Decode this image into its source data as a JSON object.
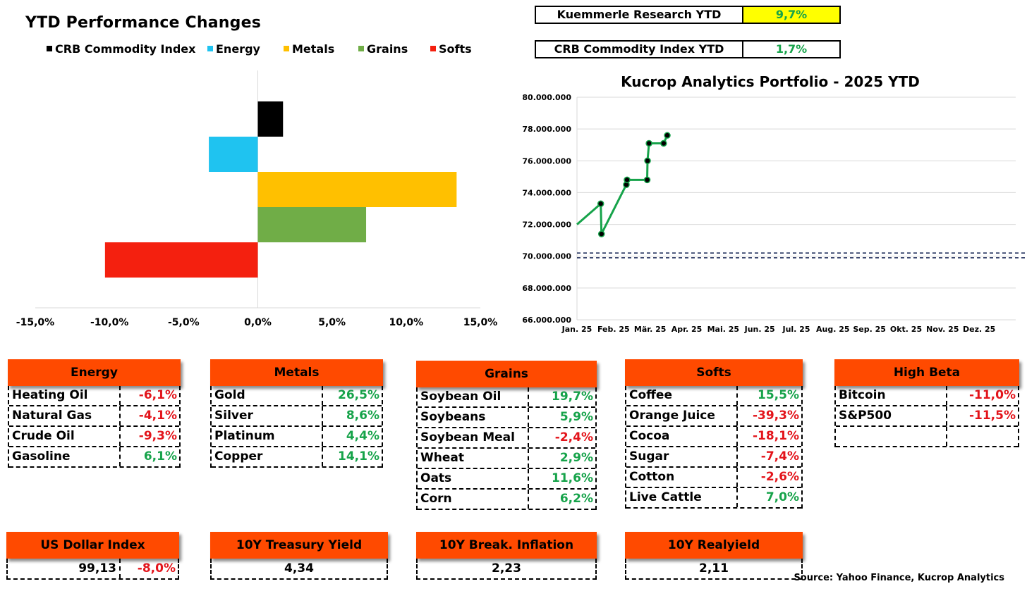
{
  "left_chart": {
    "title": "YTD Performance Changes",
    "legend": [
      {
        "label": "CRB Commodity Index",
        "color": "#000000"
      },
      {
        "label": "Energy",
        "color": "#1fc3f0"
      },
      {
        "label": "Metals",
        "color": "#ffc000"
      },
      {
        "label": "Grains",
        "color": "#70ad47"
      },
      {
        "label": "Softs",
        "color": "#f4200f"
      }
    ]
  },
  "kpis": [
    {
      "label": "Kuemmerle Research YTD",
      "value": "9,7%",
      "highlight": "#ffff00"
    },
    {
      "label": "CRB Commodity Index YTD",
      "value": "1,7%",
      "highlight": "#ffffff"
    }
  ],
  "right_chart": {
    "title": "Kucrop Analytics Portfolio - 2025 YTD"
  },
  "chart_data": [
    {
      "type": "bar",
      "orientation": "horizontal",
      "title": "YTD Performance Changes",
      "categories": [
        "CRB Commodity Index",
        "Energy",
        "Metals",
        "Grains",
        "Softs"
      ],
      "values": [
        1.7,
        -3.3,
        13.4,
        7.3,
        -10.3
      ],
      "colors": [
        "#000000",
        "#1fc3f0",
        "#ffc000",
        "#70ad47",
        "#f4200f"
      ],
      "xlim": [
        -15,
        15
      ],
      "xticks": [
        "-15,0%",
        "-10,0%",
        "-5,0%",
        "0,0%",
        "5,0%",
        "10,0%",
        "15,0%"
      ],
      "legend": "top"
    },
    {
      "type": "line",
      "title": "Kucrop Analytics Portfolio - 2025 YTD",
      "ylim": [
        66000000,
        80000000
      ],
      "yticks": [
        "66.000.000",
        "68.000.000",
        "70.000.000",
        "72.000.000",
        "74.000.000",
        "76.000.000",
        "78.000.000",
        "80.000.000"
      ],
      "xticks": [
        "Jan. 25",
        "Feb. 25",
        "Mär. 25",
        "Apr. 25",
        "Mai. 25",
        "Jun. 25",
        "Jul. 25",
        "Aug. 25",
        "Sep. 25",
        "Okt. 25",
        "Nov. 25",
        "Dez. 25"
      ],
      "grid": true,
      "series": [
        {
          "color": "#16a34a",
          "points": [
            {
              "month": 0.0,
              "value": 72000000,
              "marker": false
            },
            {
              "month": 0.65,
              "value": 73300000,
              "marker": true
            },
            {
              "month": 0.67,
              "value": 71400000,
              "marker": true
            },
            {
              "month": 1.35,
              "value": 74500000,
              "marker": true
            },
            {
              "month": 1.37,
              "value": 74800000,
              "marker": true
            },
            {
              "month": 1.92,
              "value": 74800000,
              "marker": true
            },
            {
              "month": 1.93,
              "value": 76000000,
              "marker": true
            },
            {
              "month": 1.97,
              "value": 77100000,
              "marker": true
            },
            {
              "month": 2.37,
              "value": 77100000,
              "marker": true
            },
            {
              "month": 2.47,
              "value": 77600000,
              "marker": true
            }
          ]
        }
      ],
      "reference_lines": [
        70200000,
        69900000
      ]
    }
  ],
  "tables": {
    "energy": {
      "title": "Energy",
      "rows": [
        {
          "name": "Heating Oil",
          "value": "-6,1%",
          "sign": "neg"
        },
        {
          "name": "Natural Gas",
          "value": "-4,1%",
          "sign": "neg"
        },
        {
          "name": "Crude Oil",
          "value": "-9,3%",
          "sign": "neg"
        },
        {
          "name": "Gasoline",
          "value": "6,1%",
          "sign": "pos"
        }
      ]
    },
    "metals": {
      "title": "Metals",
      "rows": [
        {
          "name": "Gold",
          "value": "26,5%",
          "sign": "pos"
        },
        {
          "name": "Silver",
          "value": "8,6%",
          "sign": "pos"
        },
        {
          "name": "Platinum",
          "value": "4,4%",
          "sign": "pos"
        },
        {
          "name": "Copper",
          "value": "14,1%",
          "sign": "pos"
        }
      ]
    },
    "grains": {
      "title": "Grains",
      "rows": [
        {
          "name": "Soybean Oil",
          "value": "19,7%",
          "sign": "pos"
        },
        {
          "name": "Soybeans",
          "value": "5,9%",
          "sign": "pos"
        },
        {
          "name": "Soybean Meal",
          "value": "-2,4%",
          "sign": "neg"
        },
        {
          "name": "Wheat",
          "value": "2,9%",
          "sign": "pos"
        },
        {
          "name": "Oats",
          "value": "11,6%",
          "sign": "pos"
        },
        {
          "name": "Corn",
          "value": "6,2%",
          "sign": "pos"
        }
      ]
    },
    "softs": {
      "title": "Softs",
      "rows": [
        {
          "name": "Coffee",
          "value": "15,5%",
          "sign": "pos"
        },
        {
          "name": "Orange Juice",
          "value": "-39,3%",
          "sign": "neg"
        },
        {
          "name": "Cocoa",
          "value": "-18,1%",
          "sign": "neg"
        },
        {
          "name": "Sugar",
          "value": "-7,4%",
          "sign": "neg"
        },
        {
          "name": "Cotton",
          "value": "-2,6%",
          "sign": "neg"
        },
        {
          "name": "Live Cattle",
          "value": "7,0%",
          "sign": "pos"
        }
      ]
    },
    "high_beta": {
      "title": "High Beta",
      "rows": [
        {
          "name": "Bitcoin",
          "value": "-11,0%",
          "sign": "neg"
        },
        {
          "name": "S&P500",
          "value": "-11,5%",
          "sign": "neg"
        },
        {
          "name": "",
          "value": "",
          "sign": "neg"
        }
      ]
    }
  },
  "indicators": {
    "usd": {
      "title": "US Dollar Index",
      "value": "99,13",
      "change": "-8,0%"
    },
    "treasury": {
      "title": "10Y Treasury Yield",
      "value": "4,34"
    },
    "breakeven": {
      "title": "10Y Break. Inflation",
      "value": "2,23"
    },
    "realyield": {
      "title": "10Y Realyield",
      "value": "2,11"
    }
  },
  "source": "Source: Yahoo Finance, Kucrop Analytics"
}
